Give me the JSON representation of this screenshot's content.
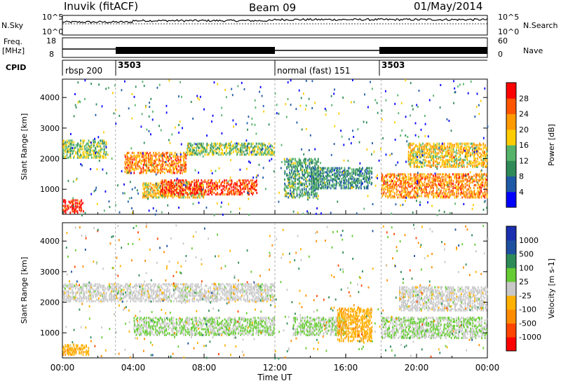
{
  "header": {
    "station": "Inuvik (fitACF)",
    "beam": "Beam 09",
    "date": "01/May/2014"
  },
  "top_panels": {
    "nsky_label": "N.Sky",
    "nsearch_label": "N.Search",
    "nsky_ticks": [
      "10^5",
      "10^0"
    ],
    "nsearch_ticks": [
      "10^5",
      "10^0"
    ],
    "freq_label_1": "Freq.",
    "freq_label_2": "[MHz]",
    "freq_ticks": [
      "18",
      "8"
    ],
    "nave_label": "Nave",
    "nave_ticks": [
      "60",
      "0"
    ],
    "cpid_label": "CPID",
    "cpid_segments": [
      {
        "start_h": 0,
        "end_h": 3,
        "text": "rbsp 200"
      },
      {
        "start_h": 3,
        "end_h": 12,
        "text": "3503"
      },
      {
        "start_h": 12,
        "end_h": 18,
        "text": "normal (fast) 151"
      },
      {
        "start_h": 18,
        "end_h": 24,
        "text": "3503"
      }
    ]
  },
  "colors": {
    "power_scale": [
      "#0000ff",
      "#1f5aa6",
      "#2e8b57",
      "#56b46a",
      "#ffcc00",
      "#ff9900",
      "#ff5500",
      "#ff0000"
    ],
    "velocity_scale": [
      "#ff0000",
      "#ff4500",
      "#ff8c00",
      "#ffb000",
      "#c8c8c8",
      "#66cc33",
      "#2e8b57",
      "#1e50a0",
      "#1a2fb0"
    ],
    "ground_scatter": "#c8c8c8"
  },
  "chart_data": [
    {
      "type": "heatmap",
      "name_shown": "",
      "ylabel": "Slant Range [km]",
      "xlabel": "",
      "xlim_hours": [
        0,
        24
      ],
      "ylim_km": [
        180,
        4600
      ],
      "yticks": [
        "4000",
        "3000",
        "2000",
        "1000"
      ],
      "colorbar": {
        "label": "Power [dB]",
        "ticks": [
          "28",
          "24",
          "20",
          "16",
          "12",
          "8",
          "4"
        ],
        "range": [
          0,
          30
        ]
      },
      "bands": [
        {
          "t0": 0,
          "t1": 1.2,
          "r0": 200,
          "r1": 650,
          "level": 27
        },
        {
          "t0": 0,
          "t1": 2.5,
          "r0": 2000,
          "r1": 2600,
          "level": 14
        },
        {
          "t0": 3.5,
          "t1": 7,
          "r0": 1500,
          "r1": 2200,
          "level": 22
        },
        {
          "t0": 4.5,
          "t1": 8,
          "r0": 700,
          "r1": 1200,
          "level": 18
        },
        {
          "t0": 5.5,
          "t1": 11,
          "r0": 800,
          "r1": 1300,
          "level": 26
        },
        {
          "t0": 7,
          "t1": 12,
          "r0": 2100,
          "r1": 2500,
          "level": 14
        },
        {
          "t0": 12.5,
          "t1": 14.5,
          "r0": 700,
          "r1": 2000,
          "level": 11
        },
        {
          "t0": 14,
          "t1": 17.5,
          "r0": 1000,
          "r1": 1700,
          "level": 9
        },
        {
          "t0": 18,
          "t1": 24,
          "r0": 700,
          "r1": 1500,
          "level": 22
        },
        {
          "t0": 19.5,
          "t1": 24,
          "r0": 1700,
          "r1": 2500,
          "level": 18
        }
      ]
    },
    {
      "type": "heatmap",
      "name_shown": "",
      "ylabel": "Slant Range [km]",
      "xlabel": "Time UT",
      "xlim_hours": [
        0,
        24
      ],
      "ylim_km": [
        180,
        4600
      ],
      "yticks": [
        "4000",
        "3000",
        "2000",
        "1000"
      ],
      "xticks": [
        "00:00",
        "04:00",
        "08:00",
        "12:00",
        "16:00",
        "20:00",
        "00:00"
      ],
      "colorbar": {
        "label": "Velocity [m s-1]",
        "ticks": [
          "1000",
          "500",
          "100",
          "25",
          "-25",
          "-100",
          "-500",
          "-1000"
        ],
        "range": [
          -1200,
          1200
        ]
      },
      "bands": [
        {
          "t0": 0,
          "t1": 1.5,
          "r0": 250,
          "r1": 600,
          "velocity": -300
        },
        {
          "t0": 0,
          "t1": 3,
          "r0": 2000,
          "r1": 2600,
          "velocity": 0
        },
        {
          "t0": 3,
          "t1": 12,
          "r0": 2000,
          "r1": 2600,
          "velocity": 0
        },
        {
          "t0": 4,
          "t1": 12,
          "r0": 900,
          "r1": 1500,
          "velocity": 150
        },
        {
          "t0": 13,
          "t1": 16,
          "r0": 900,
          "r1": 1500,
          "velocity": 150
        },
        {
          "t0": 15.5,
          "t1": 17.5,
          "r0": 700,
          "r1": 1800,
          "velocity": -300
        },
        {
          "t0": 18,
          "t1": 24,
          "r0": 800,
          "r1": 1500,
          "velocity": 120
        },
        {
          "t0": 19,
          "t1": 24,
          "r0": 1700,
          "r1": 2500,
          "velocity": 0
        }
      ]
    }
  ]
}
